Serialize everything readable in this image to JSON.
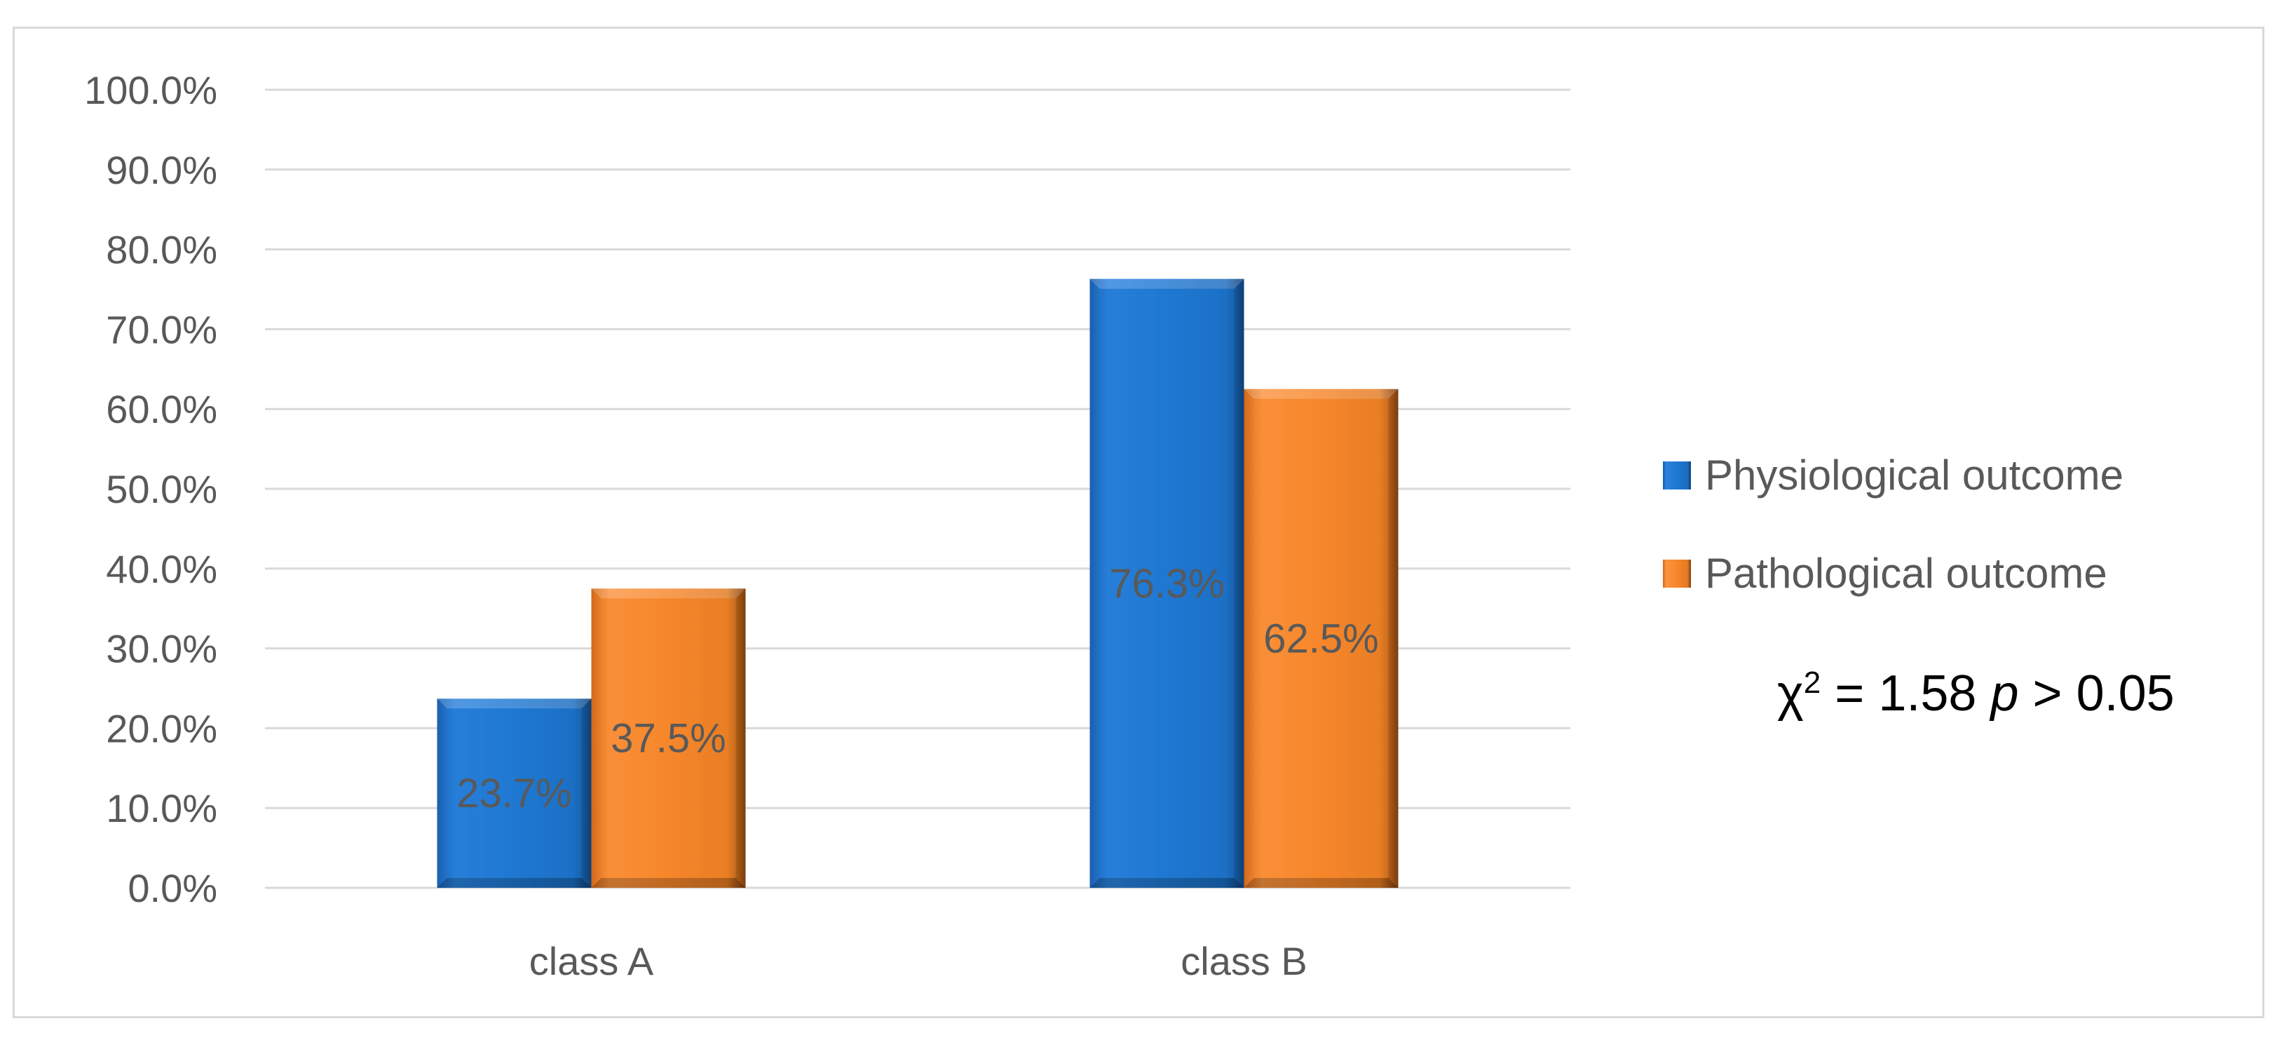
{
  "chart_data": {
    "type": "bar",
    "categories": [
      "class A",
      "class B"
    ],
    "series": [
      {
        "name": "Physiological outcome",
        "values": [
          23.7,
          76.3
        ],
        "labels": [
          "23.7%",
          "76.3%"
        ],
        "color": "#1f78d1"
      },
      {
        "name": "Pathological outcome",
        "values": [
          37.5,
          62.5
        ],
        "labels": [
          "37.5%",
          "62.5%"
        ],
        "color": "#f7862b"
      }
    ],
    "ylim": [
      0,
      100
    ],
    "yticks": [
      "0.0%",
      "10.0%",
      "20.0%",
      "30.0%",
      "40.0%",
      "50.0%",
      "60.0%",
      "70.0%",
      "80.0%",
      "90.0%",
      "100.0%"
    ],
    "grid": true,
    "legend_position": "right"
  },
  "annotation": {
    "chi": "χ",
    "sup": "2",
    "mid": " = 1.58 ",
    "p": "p",
    "end": " > 0.05"
  },
  "colors": {
    "grid": "#d9d9d9",
    "text": "#595959",
    "frame": "#d9d9d9"
  }
}
